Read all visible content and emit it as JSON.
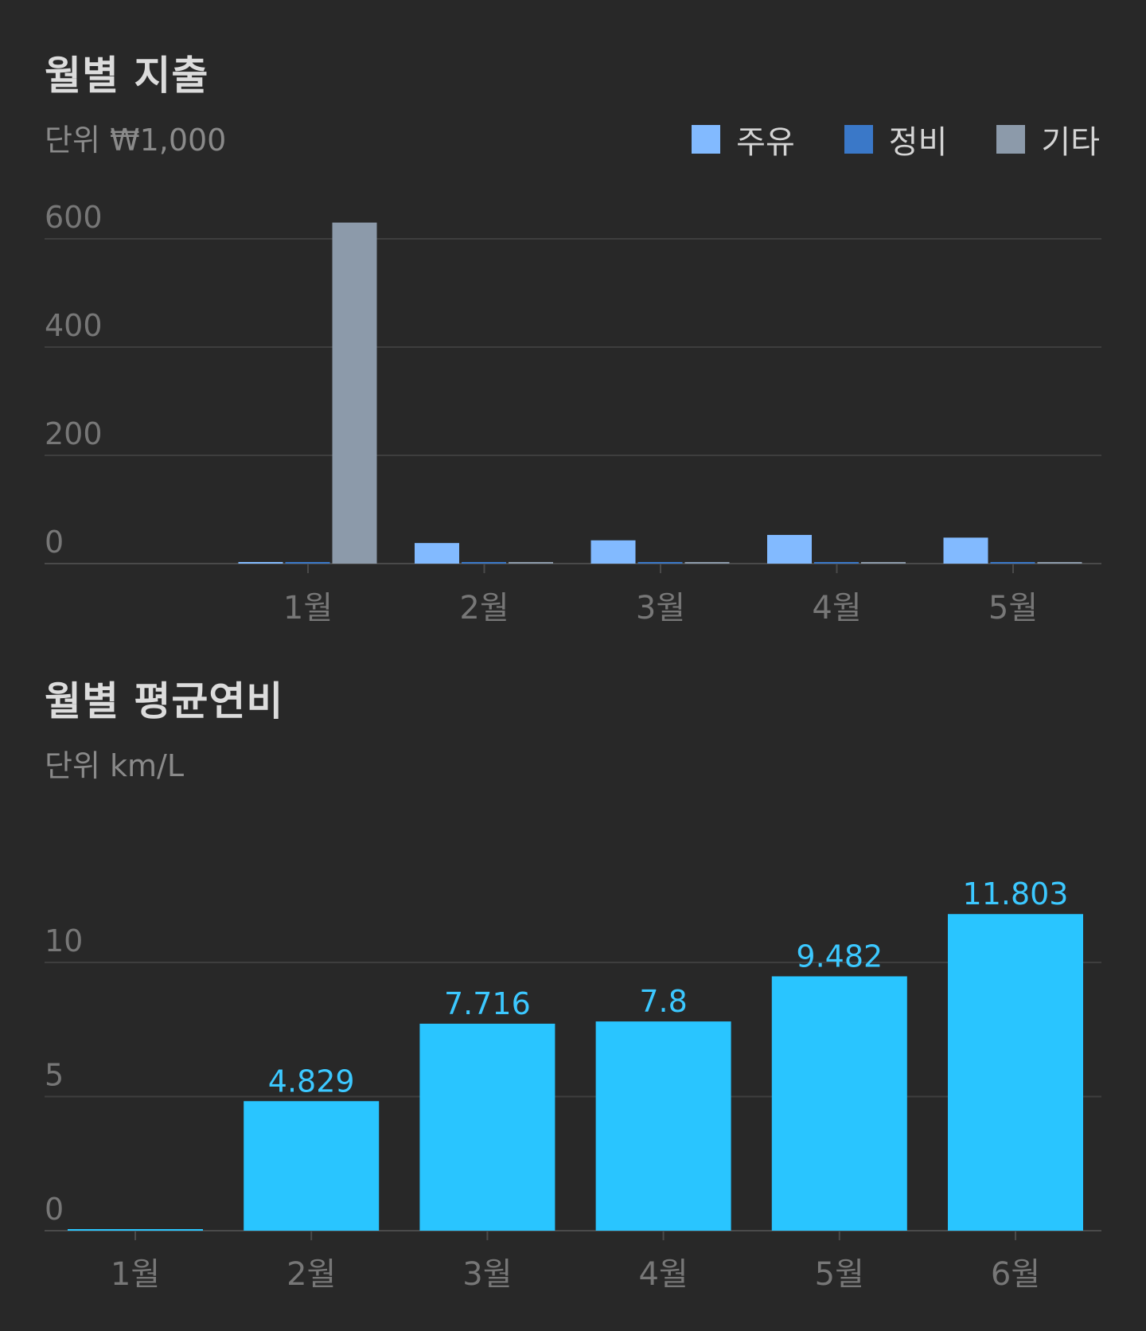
{
  "expense_section": {
    "title": "월별 지출",
    "unit": "단위 ₩1,000"
  },
  "efficiency_section": {
    "title": "월별 평균연비",
    "unit": "단위 km/L"
  },
  "colors": {
    "background": "#282828",
    "fuel": "#82BAFF",
    "maintenance": "#3A78C8",
    "other": "#8C9AAA",
    "efficiency": "#29C5FF",
    "value_label": "#3CC8FF",
    "gridline": "#3E3E3E",
    "tick_label": "#777777"
  },
  "chart_data": [
    {
      "type": "bar",
      "categories": [
        "1월",
        "2월",
        "3월",
        "4월",
        "5월"
      ],
      "series": [
        {
          "name": "주유",
          "values": [
            0,
            38,
            43,
            53,
            48
          ]
        },
        {
          "name": "정비",
          "values": [
            0,
            0,
            0,
            0,
            0
          ]
        },
        {
          "name": "기타",
          "values": [
            630,
            0,
            0,
            0,
            0
          ]
        }
      ],
      "ylim": [
        0,
        600
      ],
      "yticks": [
        "0",
        "200",
        "400",
        "600"
      ],
      "legend_position": "top-right",
      "grid": true
    },
    {
      "type": "bar",
      "categories": [
        "1월",
        "2월",
        "3월",
        "4월",
        "5월",
        "6월"
      ],
      "values": [
        0,
        4.829,
        7.716,
        7.8,
        9.482,
        11.803
      ],
      "data_labels": [
        "",
        "4.829",
        "7.716",
        "7.8",
        "9.482",
        "11.803"
      ],
      "ylim": [
        0,
        10
      ],
      "yticks": [
        "0",
        "5",
        "10"
      ],
      "grid": true
    }
  ]
}
